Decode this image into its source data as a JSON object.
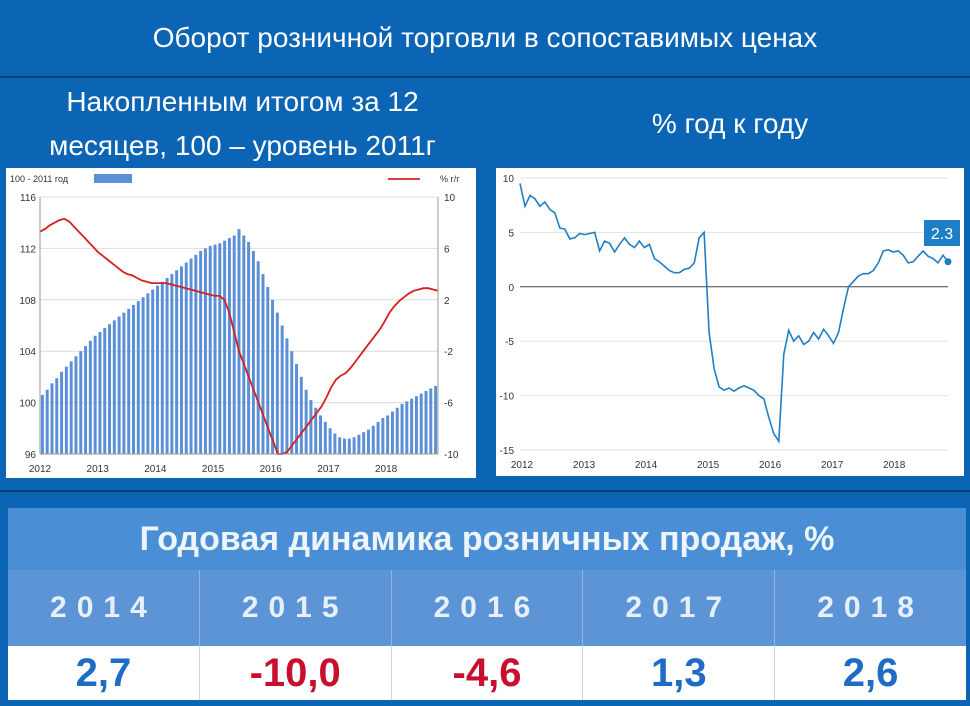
{
  "header": {
    "title": "Оборот розничной торговли в сопоставимых ценах"
  },
  "left": {
    "subtitle_line1": "Накопленным итогом за 12",
    "subtitle_line2": "месяцев, 100 – уровень 2011г"
  },
  "right": {
    "subtitle": "% год к году"
  },
  "chart_data": [
    {
      "type": "bar",
      "legend": [
        "100 - 2011 год",
        "% г/г"
      ],
      "legend_position": "top",
      "x_tick_labels": [
        "2012",
        "2013",
        "2014",
        "2015",
        "2016",
        "2017",
        "2018"
      ],
      "ylim_left": [
        96,
        116
      ],
      "yticks_left": [
        "96",
        "100",
        "104",
        "108",
        "112",
        "116"
      ],
      "ylim_right": [
        -10,
        10
      ],
      "yticks_right": [
        "-10",
        "-6",
        "-2",
        "2",
        "6",
        "10"
      ],
      "grid": true,
      "series": [
        {
          "name": "100 - 2011 год",
          "kind": "bar",
          "axis": "left",
          "color": "#5b8fd6",
          "values": [
            100.6,
            101.0,
            101.5,
            101.9,
            102.4,
            102.8,
            103.2,
            103.6,
            104.0,
            104.4,
            104.8,
            105.2,
            105.5,
            105.8,
            106.1,
            106.4,
            106.7,
            107.0,
            107.3,
            107.6,
            107.9,
            108.2,
            108.5,
            108.8,
            109.1,
            109.4,
            109.7,
            110.0,
            110.3,
            110.6,
            110.9,
            111.2,
            111.5,
            111.8,
            112.0,
            112.2,
            112.3,
            112.4,
            112.6,
            112.8,
            113.0,
            113.5,
            113.0,
            112.5,
            111.8,
            111.0,
            110.0,
            109.0,
            108.0,
            107.0,
            106.0,
            105.0,
            104.0,
            103.0,
            102.0,
            101.0,
            100.2,
            99.6,
            99.0,
            98.5,
            98.0,
            97.6,
            97.3,
            97.2,
            97.2,
            97.3,
            97.5,
            97.7,
            97.9,
            98.2,
            98.5,
            98.8,
            99.0,
            99.3,
            99.6,
            99.9,
            100.1,
            100.3,
            100.5,
            100.7,
            100.9,
            101.1,
            101.3
          ]
        },
        {
          "name": "% г/г",
          "kind": "line",
          "axis": "right",
          "color": "#d42020",
          "values": [
            7.3,
            7.5,
            7.8,
            8.0,
            8.2,
            8.3,
            8.1,
            7.7,
            7.3,
            6.9,
            6.5,
            6.1,
            5.7,
            5.4,
            5.1,
            4.8,
            4.5,
            4.2,
            4.0,
            3.9,
            3.7,
            3.5,
            3.4,
            3.3,
            3.3,
            3.3,
            3.3,
            3.2,
            3.1,
            3.0,
            2.9,
            2.8,
            2.7,
            2.6,
            2.5,
            2.4,
            2.3,
            2.3,
            2.0,
            1.0,
            -0.5,
            -2.0,
            -3.0,
            -4.0,
            -5.0,
            -6.0,
            -7.0,
            -8.0,
            -9.0,
            -10.0,
            -10.0,
            -9.8,
            -9.3,
            -8.8,
            -8.3,
            -7.8,
            -7.3,
            -6.8,
            -6.3,
            -5.6,
            -4.8,
            -4.2,
            -3.9,
            -3.7,
            -3.3,
            -2.8,
            -2.3,
            -1.8,
            -1.3,
            -0.8,
            -0.3,
            0.3,
            1.0,
            1.5,
            1.9,
            2.2,
            2.5,
            2.7,
            2.8,
            2.9,
            2.9,
            2.8,
            2.7
          ]
        }
      ]
    },
    {
      "type": "line",
      "x_tick_labels": [
        "2012",
        "2013",
        "2014",
        "2015",
        "2016",
        "2017",
        "2018"
      ],
      "ylim": [
        -15,
        10
      ],
      "yticks": [
        "-15",
        "-10",
        "-5",
        "0",
        "5",
        "10"
      ],
      "grid": true,
      "end_label": "2.3",
      "series": [
        {
          "name": "",
          "color": "#1f7fc4",
          "values": [
            9.5,
            7.4,
            8.4,
            8.1,
            7.4,
            7.8,
            7.1,
            6.8,
            5.4,
            5.3,
            4.4,
            4.5,
            4.9,
            4.8,
            4.9,
            5.0,
            3.3,
            4.2,
            4.0,
            3.2,
            3.9,
            4.5,
            3.9,
            3.6,
            4.2,
            3.6,
            3.9,
            2.6,
            2.3,
            1.9,
            1.5,
            1.3,
            1.3,
            1.6,
            1.7,
            2.2,
            4.5,
            5.0,
            -4.2,
            -7.5,
            -9.2,
            -9.5,
            -9.3,
            -9.6,
            -9.3,
            -9.1,
            -9.3,
            -9.5,
            -10.0,
            -10.3,
            -12.0,
            -13.5,
            -14.2,
            -6.2,
            -4.0,
            -5.0,
            -4.5,
            -5.3,
            -5.0,
            -4.2,
            -4.8,
            -3.9,
            -4.5,
            -5.2,
            -4.2,
            -2.0,
            0.0,
            0.5,
            1.0,
            1.2,
            1.2,
            1.5,
            2.2,
            3.3,
            3.4,
            3.2,
            3.3,
            2.9,
            2.2,
            2.3,
            2.8,
            3.3,
            2.8,
            2.6,
            2.2,
            2.9,
            2.3
          ]
        }
      ]
    }
  ],
  "table": {
    "title": "Годовая динамика розничных продаж, %",
    "years": [
      "2014",
      "2015",
      "2016",
      "2017",
      "2018"
    ],
    "values": [
      "2,7",
      "-10,0",
      "-4,6",
      "1,3",
      "2,6"
    ],
    "value_colors": [
      "#1f6cc6",
      "#c8102e",
      "#c8102e",
      "#1f6cc6",
      "#1f6cc6"
    ]
  }
}
